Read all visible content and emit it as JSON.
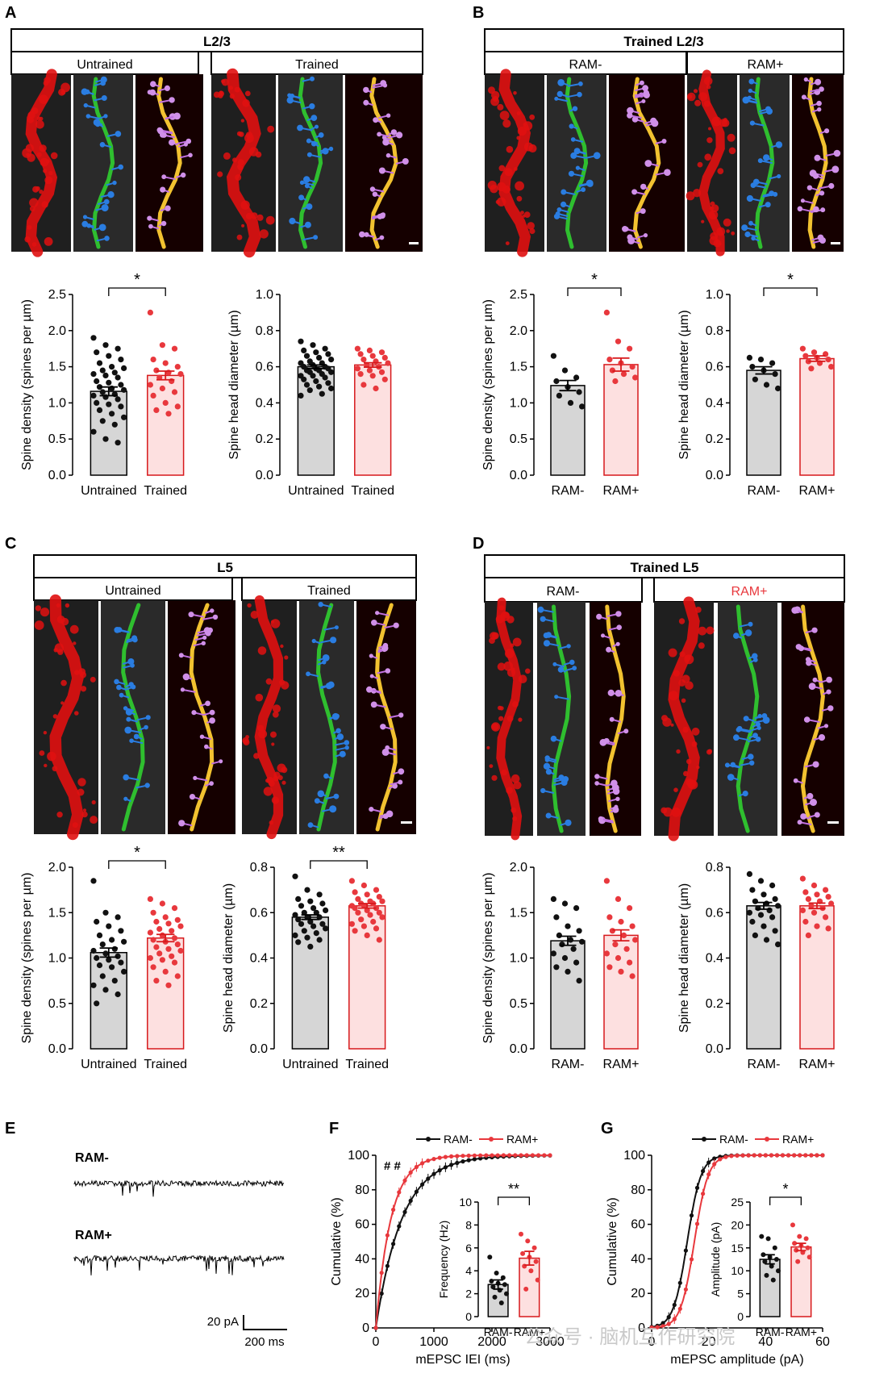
{
  "colors": {
    "black_dot": "#111111",
    "red_dot": "#e8383d",
    "gray_bar": "#d6d6d6",
    "pink_bar": "#fde0e0",
    "red_edge": "#d7191c",
    "micro_bg": "#1f1f1f",
    "micro_red": "#e01010",
    "dendrite_green": "#2fbf2f",
    "spine_blue": "#2a7de1"
  },
  "panels": {
    "A": {
      "letter": "A",
      "title": "L2/3",
      "tabs": [
        "Untrained",
        "Trained"
      ]
    },
    "B": {
      "letter": "B",
      "title": "Trained L2/3",
      "tabs": [
        "RAM-",
        "RAM+"
      ]
    },
    "C": {
      "letter": "C",
      "title": "L5",
      "tabs": [
        "Untrained",
        "Trained"
      ]
    },
    "D": {
      "letter": "D",
      "title": "Trained L5",
      "tabs": [
        "RAM-",
        "RAM+"
      ]
    },
    "E": {
      "letter": "E",
      "trace_labels": [
        "RAM-",
        "RAM+"
      ],
      "scale_y": "20 pA",
      "scale_x": "200 ms"
    },
    "F": {
      "letter": "F"
    },
    "G": {
      "letter": "G"
    }
  },
  "watermark": "公众号 · 脑机互作研究院",
  "chart_data": [
    {
      "id": "A1",
      "type": "bar",
      "title": "",
      "ylabel": "Spine density (spines per µm)",
      "categories": [
        "Untrained",
        "Trained"
      ],
      "values": [
        1.16,
        1.38
      ],
      "sem": [
        0.06,
        0.06
      ],
      "ylim": [
        0,
        2.5
      ],
      "yticks": [
        "0.0",
        "0.5",
        "1.0",
        "1.5",
        "2.0",
        "2.5"
      ],
      "significance": "*",
      "points": [
        [
          1.9,
          1.8,
          1.75,
          1.7,
          1.65,
          1.6,
          1.55,
          1.5,
          1.48,
          1.45,
          1.42,
          1.4,
          1.38,
          1.35,
          1.3,
          1.28,
          1.25,
          1.22,
          1.2,
          1.18,
          1.15,
          1.12,
          1.1,
          1.08,
          1.05,
          1.0,
          0.98,
          0.95,
          0.9,
          0.85,
          0.8,
          0.75,
          0.7,
          0.6,
          0.5,
          0.45
        ],
        [
          2.25,
          1.8,
          1.75,
          1.6,
          1.55,
          1.5,
          1.45,
          1.42,
          1.4,
          1.35,
          1.3,
          1.25,
          1.2,
          1.15,
          1.1,
          1.0,
          0.95,
          0.9,
          0.85
        ]
      ]
    },
    {
      "id": "A2",
      "type": "bar",
      "title": "",
      "ylabel": "Spine head diameter (µm)",
      "categories": [
        "Untrained",
        "Trained"
      ],
      "values": [
        0.6,
        0.61
      ],
      "sem": [
        0.01,
        0.012
      ],
      "ylim": [
        0,
        1.0
      ],
      "yticks": [
        "0.0",
        "0.2",
        "0.4",
        "0.6",
        "0.8",
        "1.0"
      ],
      "significance": "",
      "points": [
        [
          0.74,
          0.72,
          0.7,
          0.69,
          0.68,
          0.67,
          0.66,
          0.65,
          0.64,
          0.63,
          0.62,
          0.62,
          0.61,
          0.6,
          0.6,
          0.59,
          0.59,
          0.58,
          0.58,
          0.57,
          0.57,
          0.56,
          0.55,
          0.55,
          0.54,
          0.53,
          0.52,
          0.51,
          0.5,
          0.49,
          0.48,
          0.47,
          0.45,
          0.44
        ],
        [
          0.7,
          0.69,
          0.68,
          0.67,
          0.66,
          0.65,
          0.64,
          0.63,
          0.62,
          0.61,
          0.6,
          0.59,
          0.58,
          0.57,
          0.56,
          0.55,
          0.53,
          0.5,
          0.48
        ]
      ]
    },
    {
      "id": "B1",
      "type": "bar",
      "title": "",
      "ylabel": "Spine density (spines per µm)",
      "categories": [
        "RAM-",
        "RAM+"
      ],
      "values": [
        1.24,
        1.53
      ],
      "sem": [
        0.07,
        0.09
      ],
      "ylim": [
        0,
        2.5
      ],
      "yticks": [
        "0.0",
        "0.5",
        "1.0",
        "1.5",
        "2.0",
        "2.5"
      ],
      "significance": "*",
      "points": [
        [
          1.65,
          1.45,
          1.35,
          1.3,
          1.22,
          1.15,
          1.1,
          1.0,
          0.95
        ],
        [
          2.25,
          1.85,
          1.75,
          1.6,
          1.55,
          1.5,
          1.45,
          1.4,
          1.35,
          1.3
        ]
      ]
    },
    {
      "id": "B2",
      "type": "bar",
      "title": "",
      "ylabel": "Spine head diameter (µm)",
      "categories": [
        "RAM-",
        "RAM+"
      ],
      "values": [
        0.58,
        0.645
      ],
      "sem": [
        0.02,
        0.015
      ],
      "ylim": [
        0,
        1.0
      ],
      "yticks": [
        "0.0",
        "0.2",
        "0.4",
        "0.6",
        "0.8",
        "1.0"
      ],
      "significance": "*",
      "points": [
        [
          0.65,
          0.64,
          0.62,
          0.6,
          0.58,
          0.56,
          0.53,
          0.5,
          0.48
        ],
        [
          0.7,
          0.68,
          0.67,
          0.66,
          0.65,
          0.64,
          0.63,
          0.62,
          0.6,
          0.59
        ]
      ]
    },
    {
      "id": "C1",
      "type": "bar",
      "title": "",
      "ylabel": "Spine density (spines per µm)",
      "categories": [
        "Untrained",
        "Trained"
      ],
      "values": [
        1.06,
        1.22
      ],
      "sem": [
        0.05,
        0.04
      ],
      "ylim": [
        0,
        2.0
      ],
      "yticks": [
        "0.0",
        "0.5",
        "1.0",
        "1.5",
        "2.0"
      ],
      "significance": "*",
      "points": [
        [
          1.85,
          1.5,
          1.45,
          1.4,
          1.35,
          1.3,
          1.25,
          1.2,
          1.18,
          1.15,
          1.1,
          1.08,
          1.05,
          1.02,
          1.0,
          0.98,
          0.95,
          0.92,
          0.9,
          0.85,
          0.8,
          0.75,
          0.7,
          0.65,
          0.6,
          0.5
        ],
        [
          1.65,
          1.6,
          1.55,
          1.5,
          1.45,
          1.42,
          1.4,
          1.38,
          1.35,
          1.32,
          1.3,
          1.28,
          1.25,
          1.22,
          1.2,
          1.18,
          1.15,
          1.12,
          1.1,
          1.08,
          1.05,
          1.02,
          1.0,
          0.98,
          0.95,
          0.9,
          0.85,
          0.8,
          0.75,
          0.7
        ]
      ]
    },
    {
      "id": "C2",
      "type": "bar",
      "title": "",
      "ylabel": "Spine head diameter (µm)",
      "categories": [
        "Untrained",
        "Trained"
      ],
      "values": [
        0.58,
        0.63
      ],
      "sem": [
        0.01,
        0.01
      ],
      "ylim": [
        0,
        0.8
      ],
      "yticks": [
        "0.0",
        "0.2",
        "0.4",
        "0.6",
        "0.8"
      ],
      "significance": "**",
      "points": [
        [
          0.76,
          0.7,
          0.68,
          0.66,
          0.65,
          0.64,
          0.63,
          0.62,
          0.61,
          0.6,
          0.6,
          0.59,
          0.58,
          0.58,
          0.57,
          0.56,
          0.55,
          0.55,
          0.54,
          0.53,
          0.52,
          0.51,
          0.5,
          0.49,
          0.48,
          0.47,
          0.45
        ],
        [
          0.74,
          0.72,
          0.7,
          0.69,
          0.68,
          0.67,
          0.66,
          0.65,
          0.65,
          0.64,
          0.64,
          0.63,
          0.63,
          0.62,
          0.62,
          0.61,
          0.6,
          0.6,
          0.59,
          0.58,
          0.57,
          0.56,
          0.55,
          0.54,
          0.53,
          0.52,
          0.5,
          0.48
        ]
      ]
    },
    {
      "id": "D1",
      "type": "bar",
      "title": "",
      "ylabel": "Spine density (spines per µm)",
      "categories": [
        "RAM-",
        "RAM+"
      ],
      "values": [
        1.19,
        1.25
      ],
      "sem": [
        0.05,
        0.06
      ],
      "ylim": [
        0,
        2.0
      ],
      "yticks": [
        "0.0",
        "0.5",
        "1.0",
        "1.5",
        "2.0"
      ],
      "significance": "",
      "points": [
        [
          1.65,
          1.6,
          1.55,
          1.45,
          1.35,
          1.3,
          1.25,
          1.2,
          1.18,
          1.15,
          1.1,
          1.05,
          1.0,
          0.95,
          0.9,
          0.85,
          0.75
        ],
        [
          1.85,
          1.65,
          1.55,
          1.45,
          1.4,
          1.35,
          1.3,
          1.25,
          1.2,
          1.15,
          1.1,
          1.05,
          1.0,
          0.95,
          0.9,
          0.85,
          0.8
        ]
      ]
    },
    {
      "id": "D2",
      "type": "bar",
      "title": "",
      "ylabel": "Spine head diameter (µm)",
      "categories": [
        "RAM-",
        "RAM+"
      ],
      "values": [
        0.63,
        0.63
      ],
      "sem": [
        0.015,
        0.012
      ],
      "ylim": [
        0,
        0.8
      ],
      "yticks": [
        "0.0",
        "0.2",
        "0.4",
        "0.6",
        "0.8"
      ],
      "significance": "",
      "points": [
        [
          0.77,
          0.74,
          0.72,
          0.7,
          0.68,
          0.66,
          0.65,
          0.64,
          0.63,
          0.62,
          0.61,
          0.6,
          0.59,
          0.58,
          0.56,
          0.54,
          0.52,
          0.5,
          0.48,
          0.46
        ],
        [
          0.75,
          0.72,
          0.7,
          0.69,
          0.68,
          0.67,
          0.66,
          0.65,
          0.64,
          0.63,
          0.62,
          0.61,
          0.6,
          0.58,
          0.56,
          0.54,
          0.53,
          0.5
        ]
      ]
    },
    {
      "id": "F",
      "type": "line",
      "title": "",
      "xlabel": "mEPSC IEI (ms)",
      "ylabel": "Cumulative (%)",
      "xlim": [
        0,
        3000
      ],
      "ylim": [
        0,
        100
      ],
      "xticks": [
        "0",
        "1000",
        "2000",
        "3000"
      ],
      "yticks": [
        "0",
        "20",
        "40",
        "60",
        "80",
        "100"
      ],
      "annotation": "# #",
      "tau": {
        "RAM-": 450,
        "RAM+": 260
      },
      "series": [
        {
          "name": "RAM-",
          "color": "#111111"
        },
        {
          "name": "RAM+",
          "color": "#e8383d"
        }
      ],
      "inset": {
        "ylabel": "Frequency (Hz)",
        "categories": [
          "RAM-",
          "RAM+"
        ],
        "values": [
          2.8,
          5.1
        ],
        "sem": [
          0.4,
          0.6
        ],
        "ylim": [
          0,
          10
        ],
        "yticks": [
          "0",
          "2",
          "4",
          "6",
          "8",
          "10"
        ],
        "significance": "**",
        "points": [
          [
            5.2,
            3.8,
            3.4,
            3.1,
            2.9,
            2.8,
            2.6,
            2.3,
            2.0,
            1.7,
            1.2
          ],
          [
            7.2,
            6.6,
            6.0,
            5.5,
            5.2,
            4.8,
            4.4,
            4.0,
            3.2,
            2.4
          ]
        ]
      }
    },
    {
      "id": "G",
      "type": "line",
      "title": "",
      "xlabel": "mEPSC amplitude (pA)",
      "ylabel": "Cumulative (%)",
      "xlim": [
        0,
        60
      ],
      "ylim": [
        0,
        100
      ],
      "xticks": [
        "0",
        "20",
        "40",
        "60"
      ],
      "yticks": [
        "0",
        "20",
        "40",
        "60",
        "80",
        "100"
      ],
      "annotation": "",
      "mid": {
        "RAM-": 12.5,
        "RAM+": 15
      },
      "series": [
        {
          "name": "RAM-",
          "color": "#111111"
        },
        {
          "name": "RAM+",
          "color": "#e8383d"
        }
      ],
      "inset": {
        "ylabel": "Amplitude (pA)",
        "categories": [
          "RAM-",
          "RAM+"
        ],
        "values": [
          12.5,
          15.2
        ],
        "sem": [
          1.0,
          0.8
        ],
        "ylim": [
          0,
          25
        ],
        "yticks": [
          "0",
          "5",
          "10",
          "15",
          "20",
          "25"
        ],
        "significance": "*",
        "points": [
          [
            17.5,
            17.0,
            15.0,
            13.5,
            13.0,
            12.5,
            12.0,
            11.0,
            10.0,
            9.0,
            8.0
          ],
          [
            20.0,
            17.5,
            17.0,
            16.0,
            15.5,
            15.0,
            14.5,
            14.0,
            13.0,
            12.0
          ]
        ]
      }
    }
  ]
}
